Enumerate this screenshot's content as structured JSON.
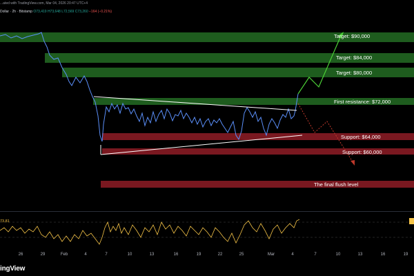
{
  "header": {
    "published": "...ated with TradingView.com, Mar 04, 2026 20:47 UTC+4",
    "symbol": "Dollar · 2h · Bitstamp",
    "ohlc_open": "O73,419",
    "ohlc_high": "H73,648",
    "ohlc_low": "L72,569",
    "ohlc_close": "C73,260",
    "change": "−164 (−0.21%)"
  },
  "zones": [
    {
      "label": "Target: $90,000",
      "kind": "target"
    },
    {
      "label": "Target: $84,000",
      "kind": "target"
    },
    {
      "label": "Target: $80,000",
      "kind": "target"
    },
    {
      "label": "First resistance: $72,000",
      "kind": "resistance"
    },
    {
      "label": "Support: $64,000",
      "kind": "support"
    },
    {
      "label": "Support: $60,000",
      "kind": "support"
    },
    {
      "label": "The final flush level",
      "kind": "flush"
    }
  ],
  "rsi": {
    "value": "73.81"
  },
  "x_axis": [
    "26",
    "29",
    "Feb",
    "4",
    "7",
    "10",
    "13",
    "16",
    "19",
    "22",
    "25",
    "Mar",
    "4",
    "7",
    "10",
    "13",
    "16",
    "19"
  ],
  "brand": "ingView",
  "colors": {
    "target": "#1e5c1e",
    "resistance": "#1e5c1e",
    "support": "#7a1820",
    "flush": "#7a1820",
    "rsi": "#f7c548",
    "price": "#5b8ff9"
  }
}
